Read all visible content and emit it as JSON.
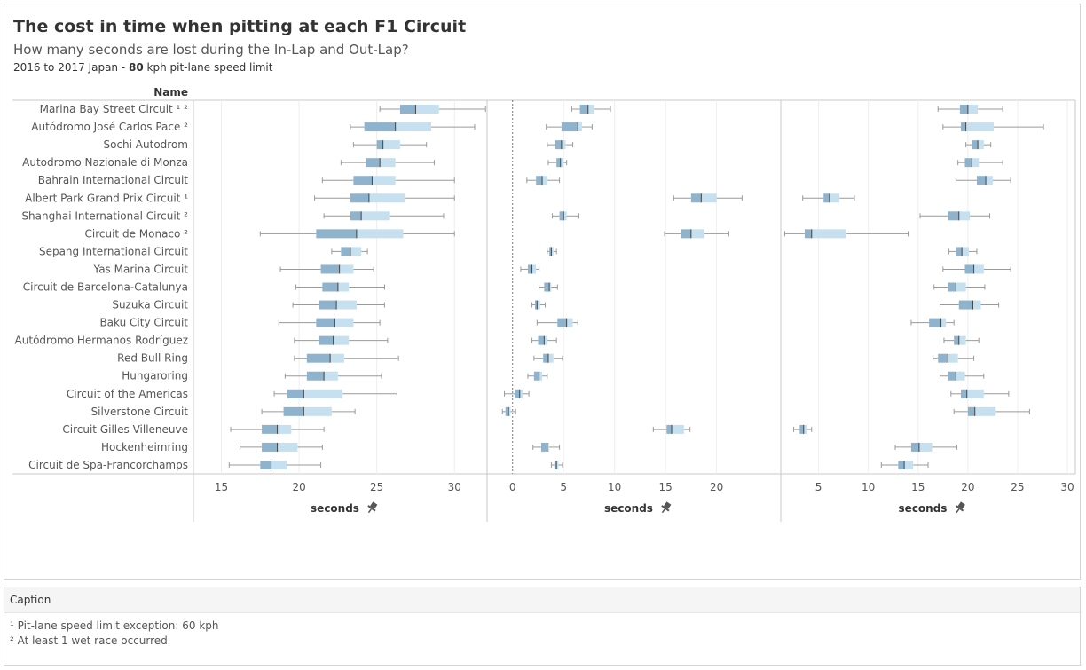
{
  "title": "The cost in time when pitting at each F1 Circuit",
  "subtitle": "How many seconds are lost during the In-Lap and Out-Lap?",
  "note": {
    "prefix": "2016 to 2017 Japan - ",
    "speed": "80",
    "suffix": " kph pit-lane speed limit"
  },
  "caption": {
    "heading": "Caption",
    "lines": [
      "¹ Pit-lane speed limit exception: 60 kph",
      "² At least 1 wet race occurred"
    ]
  },
  "chart_data": {
    "type": "boxplot",
    "row_header": "Name",
    "categories": [
      "Marina Bay Street Circuit ¹ ²",
      "Autódromo José Carlos Pace ²",
      "Sochi Autodrom",
      "Autodromo Nazionale di Monza",
      "Bahrain International Circuit",
      "Albert Park Grand Prix Circuit ¹",
      "Shanghai International Circuit ²",
      "Circuit de Monaco ²",
      "Sepang International Circuit",
      "Yas Marina Circuit",
      "Circuit de Barcelona-Catalunya",
      "Suzuka Circuit",
      "Baku City Circuit",
      "Autódromo Hermanos Rodríguez",
      "Red Bull Ring",
      "Hungaroring",
      "Circuit of the Americas",
      "Silverstone Circuit",
      "Circuit Gilles Villeneuve",
      "Hockenheimring",
      "Circuit de Spa-Francorchamps"
    ],
    "panels": [
      {
        "xlabel": "seconds",
        "xlim": [
          13.2,
          32.1
        ],
        "ticks": [
          15,
          20,
          25,
          30
        ],
        "boxes": [
          [
            25.2,
            26.5,
            27.5,
            29.0,
            32.0
          ],
          [
            23.3,
            24.2,
            26.2,
            28.5,
            31.3
          ],
          [
            23.5,
            25.0,
            25.4,
            26.5,
            28.2
          ],
          [
            22.7,
            24.3,
            25.2,
            26.2,
            28.7
          ],
          [
            21.5,
            23.5,
            24.7,
            26.2,
            30.0
          ],
          [
            21.0,
            23.3,
            24.5,
            26.8,
            30.0
          ],
          [
            21.6,
            23.3,
            24.0,
            25.8,
            29.3
          ],
          [
            17.5,
            21.1,
            23.7,
            26.7,
            30.0
          ],
          [
            22.1,
            22.7,
            23.3,
            24.0,
            24.4
          ],
          [
            18.8,
            21.4,
            22.6,
            23.5,
            24.8
          ],
          [
            19.8,
            21.5,
            22.5,
            23.2,
            25.5
          ],
          [
            19.6,
            21.3,
            22.4,
            23.7,
            25.5
          ],
          [
            18.7,
            21.1,
            22.3,
            23.5,
            25.2
          ],
          [
            19.7,
            21.3,
            22.2,
            23.2,
            25.7
          ],
          [
            19.7,
            20.5,
            22.0,
            22.9,
            26.4
          ],
          [
            19.1,
            20.5,
            21.6,
            22.5,
            25.3
          ],
          [
            18.4,
            19.2,
            20.3,
            22.8,
            26.3
          ],
          [
            17.6,
            19.0,
            20.3,
            22.1,
            23.6
          ],
          [
            15.6,
            17.6,
            18.6,
            19.5,
            21.6
          ],
          [
            16.2,
            17.6,
            18.6,
            19.9,
            21.5
          ],
          [
            15.5,
            17.5,
            18.2,
            19.2,
            21.4
          ]
        ]
      },
      {
        "xlabel": "seconds",
        "xlim": [
          -2.5,
          26.3
        ],
        "ticks": [
          0,
          5,
          10,
          15,
          20
        ],
        "boxes": [
          [
            5.8,
            6.6,
            7.4,
            8.0,
            9.6
          ],
          [
            3.3,
            4.8,
            6.4,
            6.8,
            7.8
          ],
          [
            3.4,
            4.2,
            4.8,
            5.2,
            5.9
          ],
          [
            3.5,
            4.3,
            4.7,
            5.0,
            5.3
          ],
          [
            1.4,
            2.3,
            2.9,
            3.4,
            4.6
          ],
          [
            15.8,
            17.5,
            18.5,
            20.0,
            22.5
          ],
          [
            3.9,
            4.6,
            5.0,
            5.3,
            6.5
          ],
          [
            14.9,
            16.5,
            17.5,
            18.8,
            21.2
          ],
          [
            3.4,
            3.6,
            3.8,
            4.0,
            4.3
          ],
          [
            0.8,
            1.5,
            1.9,
            2.3,
            2.6
          ],
          [
            2.6,
            3.1,
            3.6,
            3.8,
            4.4
          ],
          [
            1.9,
            2.2,
            2.4,
            2.7,
            3.2
          ],
          [
            2.4,
            4.4,
            5.3,
            5.9,
            6.4
          ],
          [
            1.9,
            2.5,
            3.1,
            3.4,
            4.3
          ],
          [
            2.1,
            3.0,
            3.5,
            4.0,
            4.9
          ],
          [
            1.5,
            2.1,
            2.6,
            2.9,
            3.4
          ],
          [
            -0.8,
            0.2,
            0.7,
            1.0,
            1.6
          ],
          [
            -1.0,
            -0.7,
            -0.4,
            -0.2,
            0.3
          ],
          [
            13.8,
            15.1,
            15.6,
            16.8,
            17.4
          ],
          [
            2.0,
            2.8,
            3.4,
            3.6,
            4.6
          ],
          [
            3.8,
            4.1,
            4.3,
            4.5,
            4.9
          ]
        ]
      },
      {
        "xlabel": "seconds",
        "xlim": [
          1.2,
          30.8
        ],
        "ticks": [
          5,
          10,
          15,
          20,
          25,
          30
        ],
        "boxes": [
          [
            17.0,
            19.2,
            20.0,
            21.0,
            23.5
          ],
          [
            17.5,
            19.3,
            19.8,
            22.6,
            27.6
          ],
          [
            19.8,
            20.4,
            21.0,
            21.6,
            22.3
          ],
          [
            19.0,
            19.7,
            20.4,
            21.1,
            23.5
          ],
          [
            18.8,
            20.9,
            21.8,
            22.5,
            24.3
          ],
          [
            3.4,
            5.5,
            6.1,
            7.1,
            8.6
          ],
          [
            15.2,
            18.0,
            19.1,
            20.2,
            22.2
          ],
          [
            1.6,
            3.6,
            4.3,
            7.8,
            14.0
          ],
          [
            18.1,
            18.8,
            19.4,
            20.1,
            20.9
          ],
          [
            17.5,
            19.7,
            20.6,
            21.6,
            24.3
          ],
          [
            16.6,
            18.0,
            18.8,
            19.8,
            21.7
          ],
          [
            17.2,
            19.1,
            20.5,
            21.3,
            23.1
          ],
          [
            14.3,
            16.1,
            17.3,
            17.8,
            18.6
          ],
          [
            17.6,
            18.6,
            19.1,
            19.8,
            21.1
          ],
          [
            16.5,
            17.0,
            18.0,
            19.0,
            20.6
          ],
          [
            17.2,
            18.0,
            18.8,
            19.7,
            21.6
          ],
          [
            18.3,
            19.3,
            19.9,
            21.6,
            24.1
          ],
          [
            18.6,
            20.0,
            20.7,
            22.8,
            26.2
          ],
          [
            2.5,
            3.1,
            3.5,
            3.8,
            4.3
          ],
          [
            12.7,
            14.3,
            15.1,
            16.4,
            18.9
          ],
          [
            11.3,
            13.0,
            13.6,
            14.5,
            16.0
          ]
        ]
      }
    ],
    "colors": {
      "lower_box": "#8fb3cc",
      "upper_box": "#c6e0f0",
      "median": "#444444",
      "whisker": "#9a9a9a",
      "zero_line": "#7a7a7a",
      "grid": "#eeeeee",
      "divider": "#c8c8c8"
    },
    "grid": true,
    "pin_icon": "pin-icon"
  }
}
